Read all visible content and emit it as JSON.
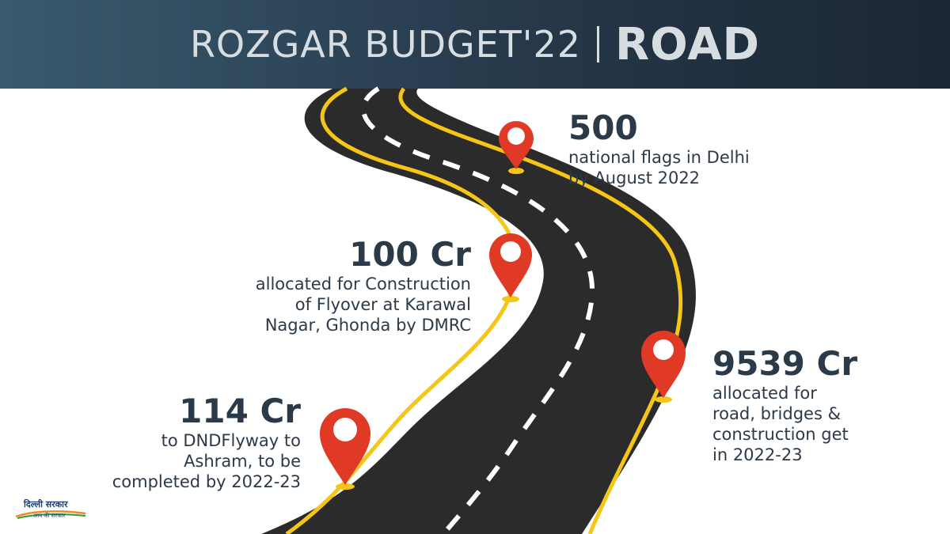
{
  "header": {
    "title": "ROZGAR BUDGET'22",
    "topic": "ROAD"
  },
  "milestones": [
    {
      "value": "500",
      "lines": [
        "national flags in Delhi",
        "by August 2022"
      ]
    },
    {
      "value": "100 Cr",
      "lines": [
        "allocated for Construction",
        "of Flyover at Karawal",
        "Nagar, Ghonda by DMRC"
      ]
    },
    {
      "value": "9539 Cr",
      "lines": [
        "allocated for",
        "road, bridges &",
        "construction get",
        "in 2022-23"
      ]
    },
    {
      "value": "114 Cr",
      "lines": [
        "to DNDFlyway to",
        "Ashram, to be",
        "completed by 2022-23"
      ]
    }
  ],
  "logo": {
    "line1": "दिल्ली सरकार",
    "line2": "आप की सरकार"
  },
  "colors": {
    "road": "#2b2b2b",
    "edge_line": "#f5c518",
    "center_line": "#ffffff",
    "pin": "#e03a26",
    "text": "#2b3a49"
  }
}
